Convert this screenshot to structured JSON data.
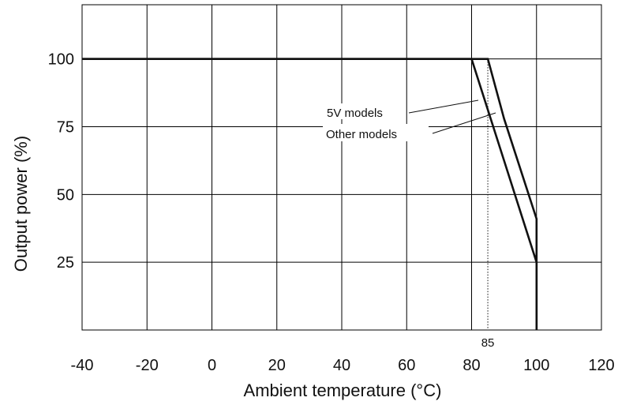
{
  "chart_data": {
    "type": "line",
    "xlabel": "Ambient temperature (°C)",
    "ylabel": "Output power (%)",
    "xlim": [
      -40,
      120
    ],
    "ylim": [
      0,
      120
    ],
    "x_ticks": [
      "-40",
      "-20",
      "0",
      "20",
      "40",
      "60",
      "80",
      "100",
      "120"
    ],
    "y_ticks": [
      "25",
      "50",
      "75",
      "100"
    ],
    "grid": true,
    "series": [
      {
        "name": "5V models",
        "points": [
          [
            -40,
            100
          ],
          [
            80,
            100
          ],
          [
            100,
            25
          ],
          [
            100,
            0
          ]
        ]
      },
      {
        "name": "Other models",
        "points": [
          [
            -40,
            100
          ],
          [
            85,
            100
          ],
          [
            90,
            78
          ],
          [
            100,
            41
          ],
          [
            100,
            0
          ]
        ]
      }
    ],
    "reference_line": {
      "x": 85,
      "label": "85",
      "style": "dotted"
    },
    "line_color": "#111111",
    "grid_color": "#000000"
  }
}
